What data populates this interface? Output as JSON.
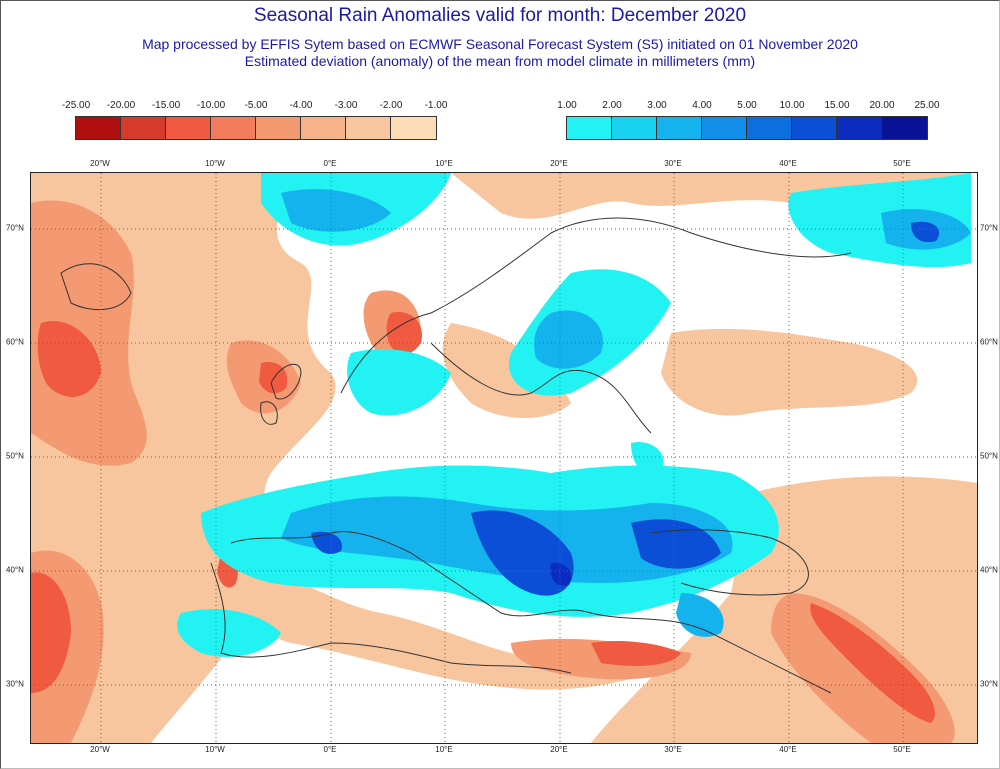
{
  "title": "Seasonal Rain Anomalies valid for month: December 2020",
  "subtitle_1": "Map processed by EFFIS Sytem based on ECMWF Seasonal Forecast System (S5) initiated on 01 November 2020",
  "subtitle_2": "Estimated deviation (anomaly) of the mean from model climate in millimeters (mm)",
  "legend_negative": {
    "labels": [
      "-25.00",
      "-20.00",
      "-15.00",
      "-10.00",
      "-5.00",
      "-4.00",
      "-3.00",
      "-2.00",
      "-1.00"
    ],
    "colors": [
      "#b00f0f",
      "#d63a2b",
      "#ef5a40",
      "#f27c5c",
      "#f49a72",
      "#f6b289",
      "#f8c69e",
      "#fcdcb5"
    ]
  },
  "legend_positive": {
    "labels": [
      "1.00",
      "2.00",
      "3.00",
      "4.00",
      "5.00",
      "10.00",
      "15.00",
      "20.00",
      "25.00"
    ],
    "colors": [
      "#22f2f2",
      "#18d2ef",
      "#14b3ee",
      "#118fe8",
      "#0d6ee0",
      "#0b4fd6",
      "#0a2cbf",
      "#0a1296"
    ]
  },
  "x_ticks": [
    "20°W",
    "10°W",
    "0°E",
    "10°E",
    "20°E",
    "30°E",
    "40°E",
    "50°E"
  ],
  "y_ticks": [
    "70°N",
    "60°N",
    "50°N",
    "40°N",
    "30°N"
  ]
}
